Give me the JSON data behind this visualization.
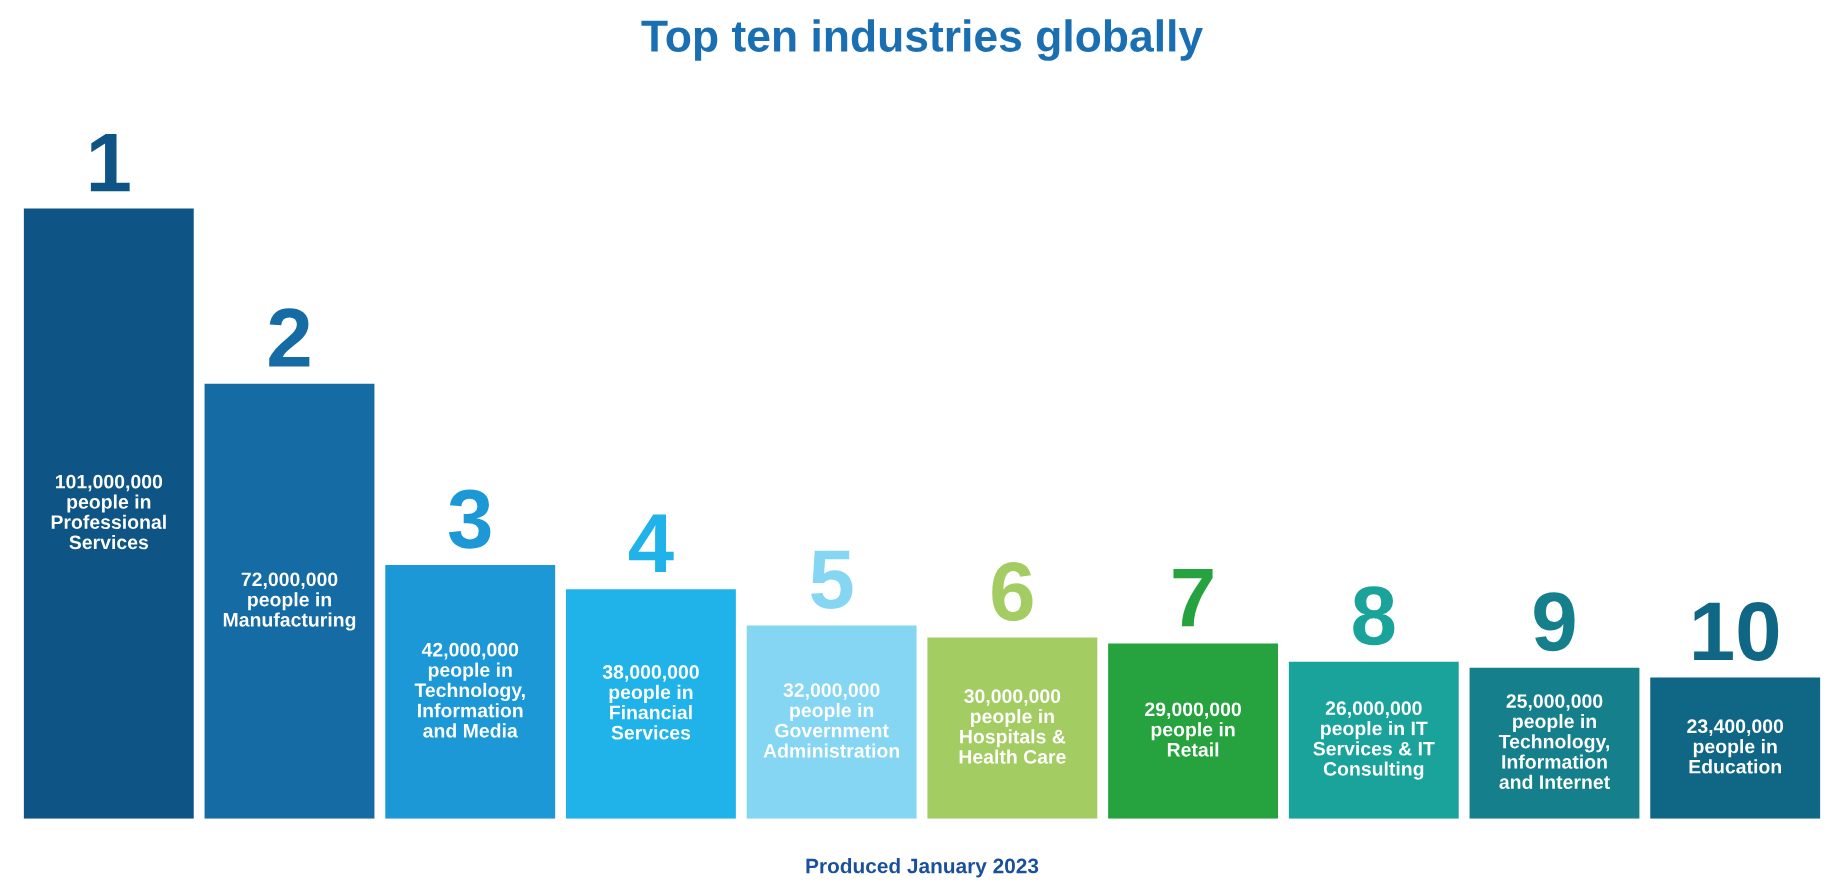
{
  "chart_data": {
    "type": "bar",
    "title": "Top ten industries globally",
    "categories": [
      "1",
      "2",
      "3",
      "4",
      "5",
      "6",
      "7",
      "8",
      "9",
      "10"
    ],
    "values": [
      101000000,
      72000000,
      42000000,
      38000000,
      32000000,
      30000000,
      29000000,
      26000000,
      25000000,
      23400000
    ],
    "colors": [
      "#0e5585",
      "#156ba3",
      "#1b98d5",
      "#1fb3ea",
      "#85d6f2",
      "#a3cc62",
      "#26a33e",
      "#1aa39a",
      "#15808c",
      "#0f6785"
    ],
    "value_labels": [
      "101,000,000\npeople in\nProfessional\nServices",
      "72,000,000\npeople in\nManufacturing",
      "42,000,000\npeople in\nTechnology,\nInformation\nand Media",
      "38,000,000\npeople in\nFinancial\nServices",
      "32,000,000\npeople in\nGovernment\nAdministration",
      "30,000,000\npeople in\nHospitals &\nHealth Care",
      "29,000,000\npeople in\nRetail",
      "26,000,000\npeople in IT\nServices & IT\nConsulting",
      "25,000,000\npeople in\nTechnology,\nInformation\nand Internet",
      "23,400,000\npeople in\nEducation"
    ],
    "annotations": [
      "Produced January 2023"
    ]
  }
}
